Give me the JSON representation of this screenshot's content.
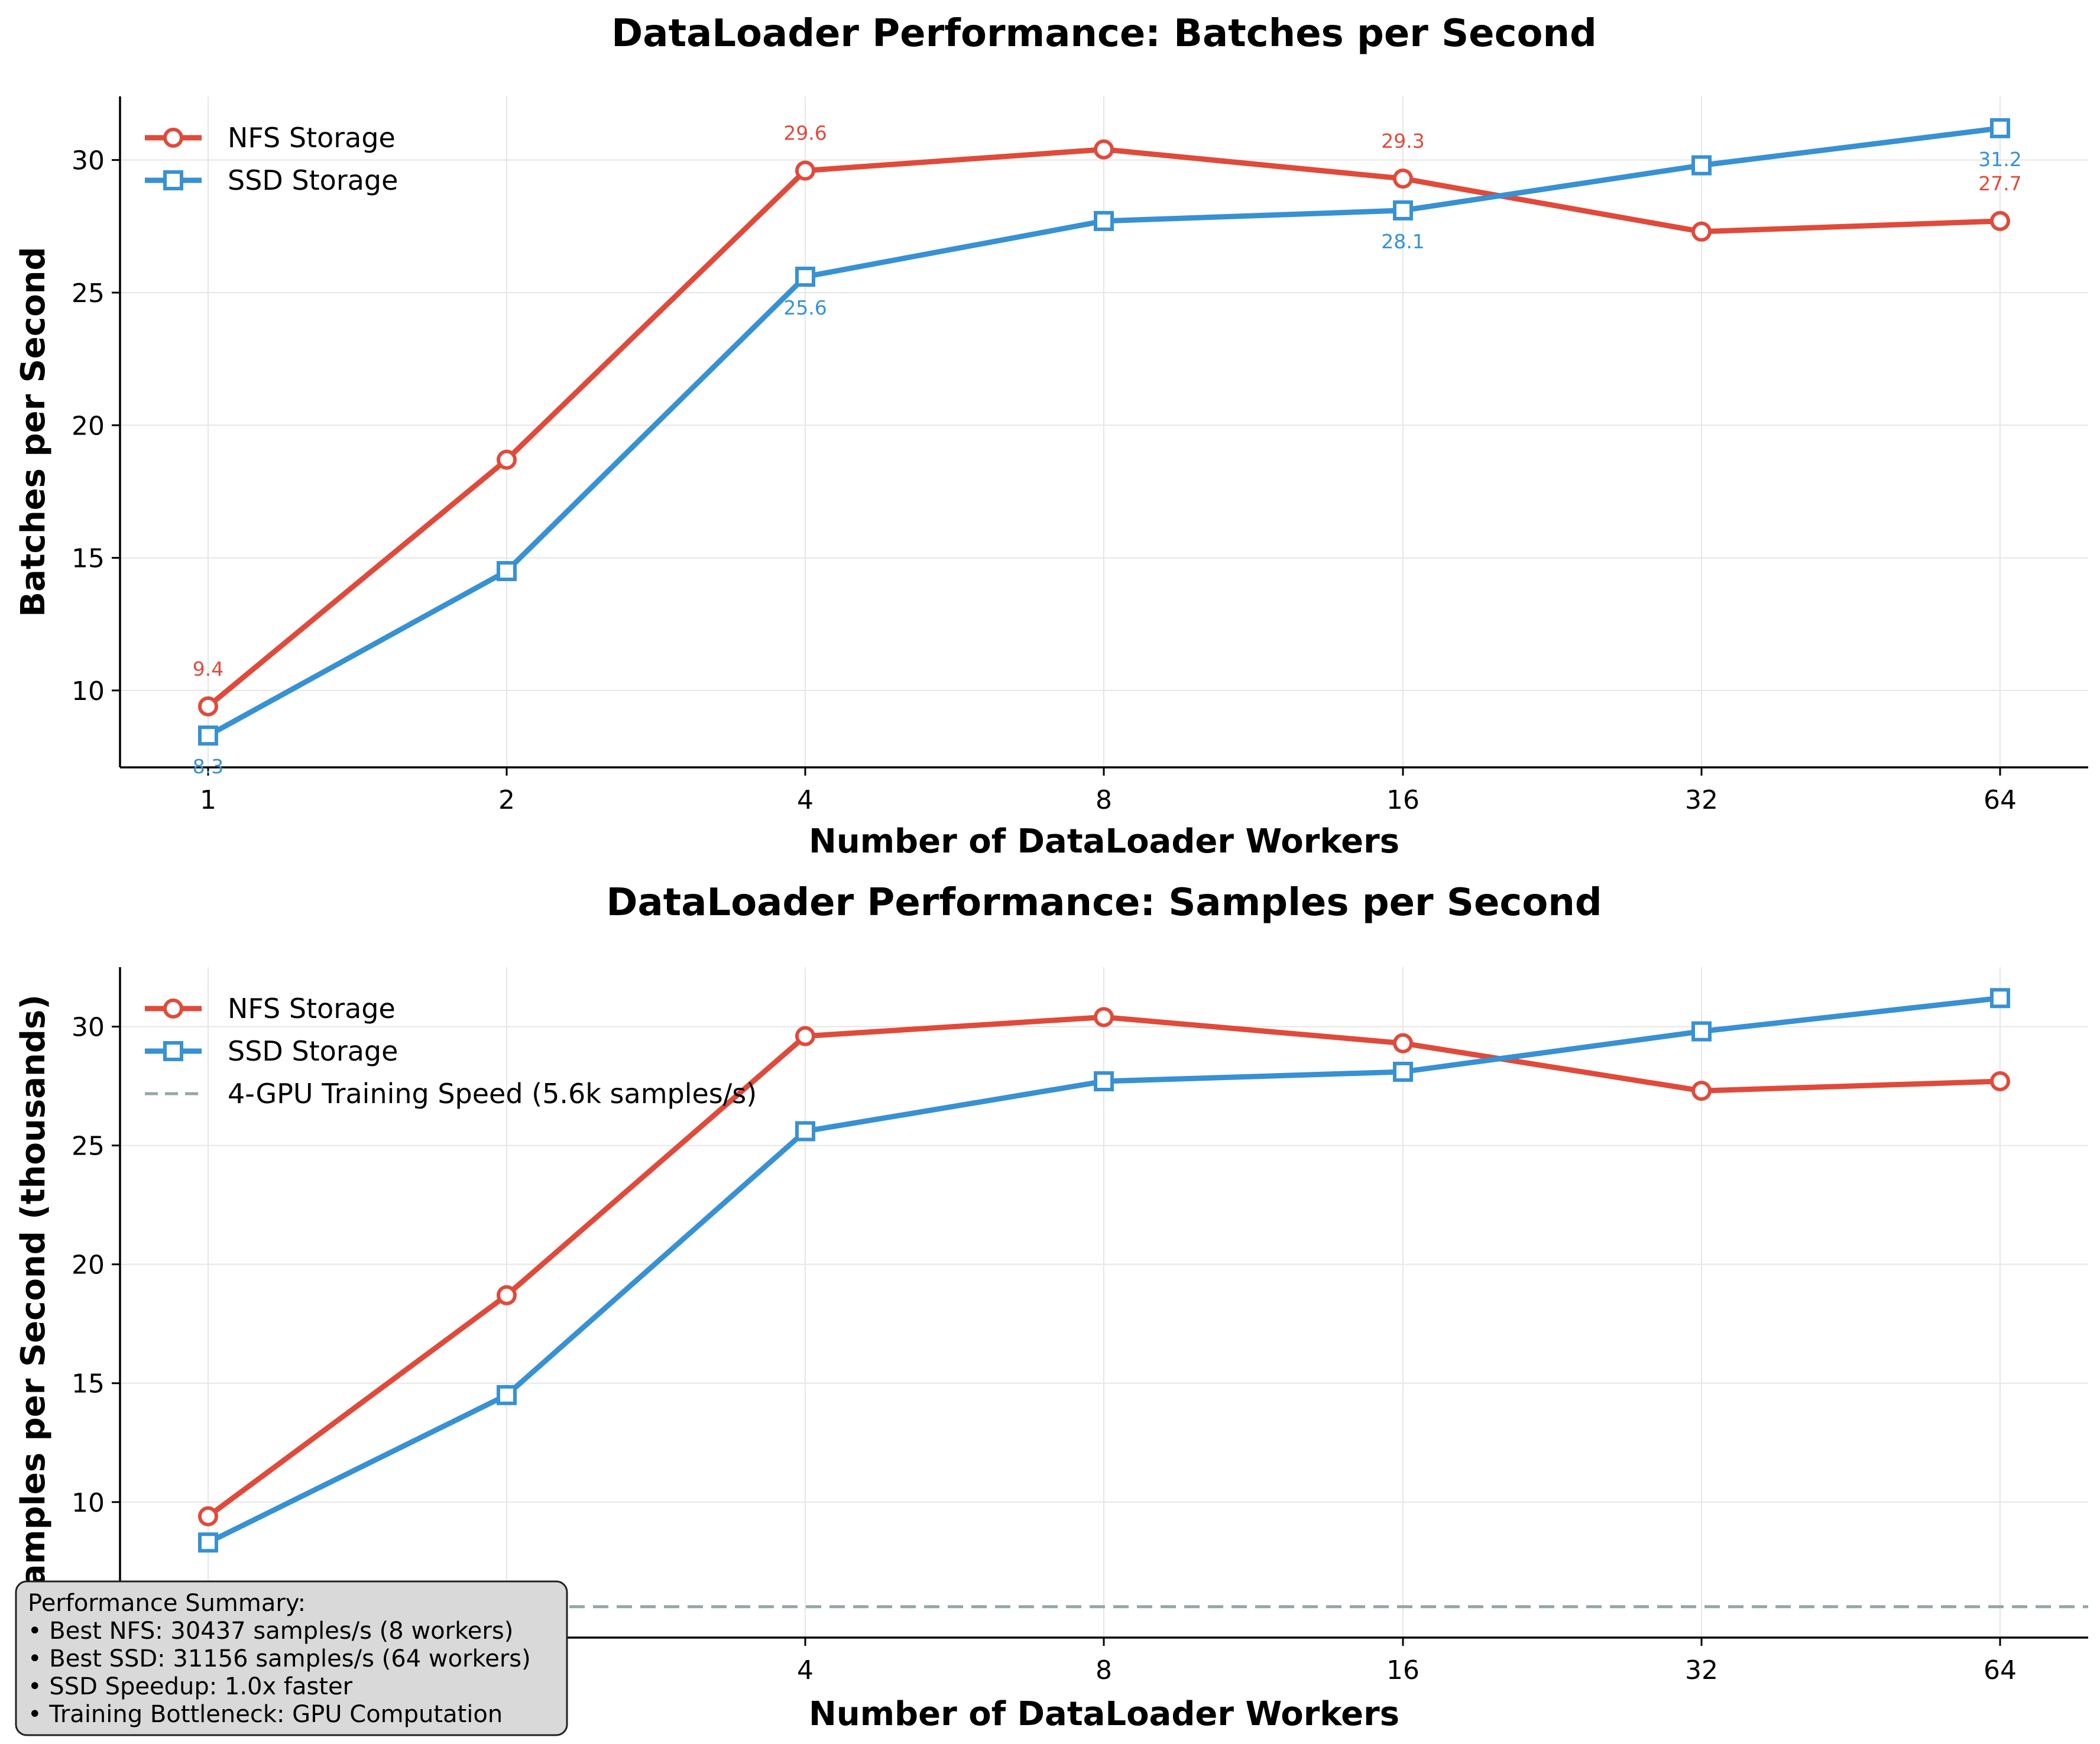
{
  "chart_data": [
    {
      "type": "line",
      "title": "DataLoader Performance: Batches per Second",
      "xlabel": "Number of DataLoader Workers",
      "ylabel": "Batches per Second",
      "x": [
        1,
        2,
        4,
        8,
        16,
        32,
        64
      ],
      "x_scale": "log2",
      "ylim": [
        7.1,
        32.4
      ],
      "yticks": [
        10,
        15,
        20,
        25,
        30
      ],
      "grid": true,
      "legend_position": "upper left",
      "series": [
        {
          "name": "NFS Storage",
          "color": "#e04a3b",
          "marker": "circle",
          "values": [
            9.4,
            18.7,
            29.6,
            30.4,
            29.3,
            27.3,
            27.7
          ]
        },
        {
          "name": "SSD Storage",
          "color": "#3791d3",
          "marker": "square",
          "values": [
            8.3,
            14.5,
            25.6,
            27.7,
            28.1,
            29.8,
            31.2
          ]
        }
      ],
      "annotations": [
        {
          "series": 0,
          "index": 0,
          "text": "9.4"
        },
        {
          "series": 0,
          "index": 2,
          "text": "29.6"
        },
        {
          "series": 0,
          "index": 4,
          "text": "29.3"
        },
        {
          "series": 0,
          "index": 6,
          "text": "27.7"
        },
        {
          "series": 1,
          "index": 0,
          "text": "8.3"
        },
        {
          "series": 1,
          "index": 2,
          "text": "25.6"
        },
        {
          "series": 1,
          "index": 4,
          "text": "28.1"
        },
        {
          "series": 1,
          "index": 6,
          "text": "31.2"
        }
      ]
    },
    {
      "type": "line",
      "title": "DataLoader Performance: Samples per Second",
      "xlabel": "Number of DataLoader Workers",
      "ylabel": "Samples per Second (thousands)",
      "x": [
        1,
        2,
        4,
        8,
        16,
        32,
        64
      ],
      "x_scale": "log2",
      "ylim": [
        4.3,
        32.5
      ],
      "yticks": [
        10,
        15,
        20,
        25,
        30
      ],
      "grid": true,
      "legend_position": "upper left",
      "series": [
        {
          "name": "NFS Storage",
          "color": "#e04a3b",
          "marker": "circle",
          "values": [
            9.4,
            18.7,
            29.6,
            30.4,
            29.3,
            27.3,
            27.7
          ]
        },
        {
          "name": "SSD Storage",
          "color": "#3791d3",
          "marker": "square",
          "values": [
            8.3,
            14.5,
            25.6,
            27.7,
            28.1,
            29.8,
            31.2
          ]
        }
      ],
      "reference_line": {
        "name": "4-GPU Training Speed (5.6k samples/s)",
        "value": 5.6,
        "color": "#95a5a6",
        "style": "dashed"
      },
      "summary_box": {
        "lines": [
          "Performance Summary:",
          "• Best NFS: 30437 samples/s (8 workers)",
          "• Best SSD: 31156 samples/s (64 workers)",
          "• SSD Speedup: 1.0x faster",
          "• Training Bottleneck: GPU Computation"
        ]
      }
    }
  ]
}
